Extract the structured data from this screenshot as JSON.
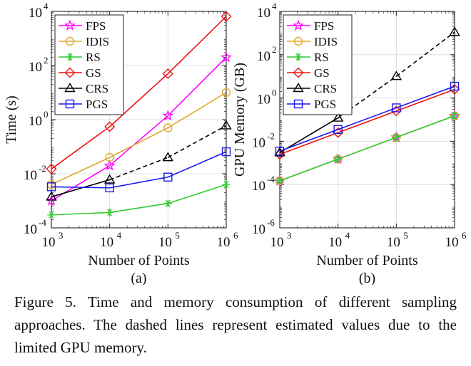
{
  "figure": {
    "caption_label": "Figure 5.",
    "caption_text": "Time and memory consumption of different sampling approaches.  The dashed lines represent estimated values due to the limited GPU memory."
  },
  "colors": {
    "FPS": "#ff00ff",
    "IDIS": "#e0a82e",
    "RS": "#33cc33",
    "GS": "#ee1111",
    "CRS": "#000000",
    "PGS": "#1a1aee"
  },
  "markers": {
    "FPS": "star",
    "IDIS": "circle",
    "RS": "asterisk",
    "GS": "diamond",
    "CRS": "triangle",
    "PGS": "square"
  },
  "chart_data": [
    {
      "type": "line",
      "sublabel": "(a)",
      "xlabel": "Number of Points",
      "ylabel": "Time (s)",
      "xscale": "log",
      "yscale": "log",
      "xlim": [
        1000,
        1000000
      ],
      "ylim": [
        0.0001,
        10000
      ],
      "x": [
        1000,
        10000,
        100000,
        1000000
      ],
      "xtick_exponents": [
        "3",
        "4",
        "5",
        "6"
      ],
      "ytick_exponents": [
        "-4",
        "-2",
        "0",
        "2",
        "4"
      ],
      "grid": true,
      "legend_position": "top-left",
      "series": [
        {
          "name": "FPS",
          "values": [
            0.001,
            0.02,
            1.4,
            200
          ],
          "dashed_from": null
        },
        {
          "name": "IDIS",
          "values": [
            0.004,
            0.04,
            0.5,
            10
          ],
          "dashed_from": null
        },
        {
          "name": "RS",
          "values": [
            0.0003,
            0.00037,
            0.0008,
            0.004
          ],
          "dashed_from": null
        },
        {
          "name": "GS",
          "values": [
            0.015,
            0.55,
            50,
            6500
          ],
          "dashed_from": null
        },
        {
          "name": "CRS",
          "values": [
            0.0014,
            0.006,
            0.04,
            0.6
          ],
          "dashed_from": 1
        },
        {
          "name": "PGS",
          "values": [
            0.0033,
            0.003,
            0.0075,
            0.065
          ],
          "dashed_from": null
        }
      ]
    },
    {
      "type": "line",
      "sublabel": "(b)",
      "xlabel": "Number of Points",
      "ylabel": "GPU Memory (GB)",
      "xscale": "log",
      "yscale": "log",
      "xlim": [
        1000,
        1000000
      ],
      "ylim": [
        1e-06,
        10000
      ],
      "x": [
        1000,
        10000,
        100000,
        1000000
      ],
      "xtick_exponents": [
        "3",
        "4",
        "5",
        "6"
      ],
      "ytick_exponents": [
        "-6",
        "-4",
        "-2",
        "0",
        "2",
        "4"
      ],
      "grid": true,
      "legend_position": "top-left",
      "series": [
        {
          "name": "FPS",
          "values": [
            0.00015,
            0.0015,
            0.015,
            0.15
          ],
          "dashed_from": null
        },
        {
          "name": "IDIS",
          "values": [
            0.00015,
            0.0015,
            0.015,
            0.15
          ],
          "dashed_from": null
        },
        {
          "name": "RS",
          "values": [
            0.00015,
            0.0015,
            0.015,
            0.15
          ],
          "dashed_from": null
        },
        {
          "name": "GS",
          "values": [
            0.0025,
            0.025,
            0.25,
            2.5
          ],
          "dashed_from": null
        },
        {
          "name": "CRS",
          "values": [
            0.003,
            0.12,
            10,
            1100
          ],
          "dashed_from": 1
        },
        {
          "name": "PGS",
          "values": [
            0.0035,
            0.035,
            0.35,
            3.5
          ],
          "dashed_from": null
        }
      ]
    }
  ]
}
